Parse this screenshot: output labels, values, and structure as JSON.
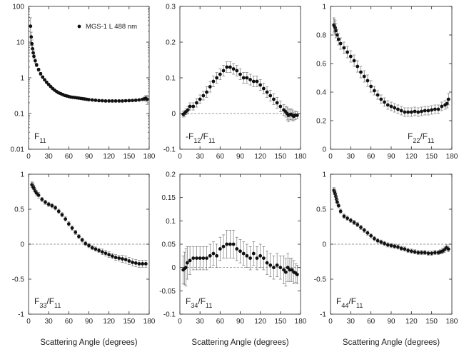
{
  "figure": {
    "shared_xlabel": "Scattering Angle (degrees)",
    "legend_label": "MGS-1 L 488 nm"
  },
  "chart_data": [
    {
      "type": "scatter",
      "panel_label": "F11",
      "panel_label_html": [
        "F",
        "11",
        ""
      ],
      "log_y": true,
      "xlim": [
        0,
        180
      ],
      "ylim": [
        0.01,
        100
      ],
      "xticks": [
        0,
        30,
        60,
        90,
        120,
        150,
        180
      ],
      "yticks": [
        0.01,
        0.1,
        1,
        10,
        100
      ],
      "ytick_labels": [
        "0.01",
        "0.1",
        "1",
        "10",
        "100"
      ],
      "zero_line": false,
      "series": [
        {
          "name": "MGS-1 L 488 nm",
          "x": [
            3,
            4,
            5,
            6,
            7,
            8,
            10,
            12,
            15,
            18,
            21,
            24,
            27,
            30,
            33,
            36,
            39,
            42,
            45,
            48,
            51,
            54,
            57,
            60,
            63,
            66,
            69,
            72,
            75,
            78,
            81,
            84,
            87,
            90,
            95,
            100,
            105,
            110,
            115,
            120,
            125,
            130,
            135,
            140,
            145,
            150,
            155,
            160,
            165,
            170,
            173,
            175,
            177
          ],
          "y": [
            28,
            14,
            9,
            6.5,
            5,
            4,
            3,
            2.3,
            1.7,
            1.3,
            1.05,
            0.88,
            0.75,
            0.65,
            0.57,
            0.5,
            0.45,
            0.41,
            0.38,
            0.36,
            0.34,
            0.32,
            0.31,
            0.3,
            0.29,
            0.285,
            0.28,
            0.275,
            0.27,
            0.265,
            0.26,
            0.255,
            0.25,
            0.245,
            0.24,
            0.235,
            0.23,
            0.228,
            0.225,
            0.225,
            0.225,
            0.225,
            0.225,
            0.225,
            0.228,
            0.23,
            0.232,
            0.235,
            0.24,
            0.25,
            0.26,
            0.27,
            0.25
          ],
          "err": [
            20,
            5,
            2.5,
            1.5,
            1,
            0.6,
            0.4,
            0.25,
            0.18,
            0.12,
            0.08,
            0.06,
            0.05,
            0.04,
            0.03,
            0.025,
            0.02,
            0.02,
            0.02,
            0.02,
            0.015,
            0.015,
            0.015,
            0.015,
            0.015,
            0.015,
            0.015,
            0.015,
            0.015,
            0.015,
            0.015,
            0.015,
            0.015,
            0.015,
            0.015,
            0.015,
            0.015,
            0.015,
            0.015,
            0.015,
            0.015,
            0.015,
            0.015,
            0.015,
            0.015,
            0.015,
            0.015,
            0.015,
            0.015,
            0.02,
            0.03,
            0.05,
            0.07
          ]
        }
      ]
    },
    {
      "type": "scatter",
      "panel_label": "-F12/F11",
      "panel_label_html": [
        "-F",
        "12",
        "/F",
        "11",
        ""
      ],
      "log_y": false,
      "xlim": [
        0,
        180
      ],
      "ylim": [
        -0.1,
        0.3
      ],
      "xticks": [
        0,
        30,
        60,
        90,
        120,
        150,
        180
      ],
      "yticks": [
        -0.1,
        0,
        0.1,
        0.2,
        0.3
      ],
      "ytick_labels": [
        "-0.1",
        "0",
        "0.1",
        "0.2",
        "0.3"
      ],
      "zero_line": true,
      "series": [
        {
          "name": "MGS-1 L 488 nm",
          "x": [
            5,
            7,
            9,
            12,
            15,
            20,
            25,
            30,
            35,
            40,
            45,
            50,
            55,
            60,
            65,
            70,
            75,
            80,
            85,
            90,
            95,
            100,
            105,
            110,
            115,
            120,
            125,
            130,
            135,
            140,
            145,
            150,
            155,
            158,
            160,
            162,
            164,
            166,
            168,
            170,
            172,
            175
          ],
          "y": [
            -0.002,
            0.0,
            0.005,
            0.01,
            0.02,
            0.02,
            0.03,
            0.04,
            0.05,
            0.06,
            0.075,
            0.09,
            0.1,
            0.11,
            0.12,
            0.13,
            0.13,
            0.125,
            0.12,
            0.11,
            0.1,
            0.1,
            0.095,
            0.09,
            0.09,
            0.08,
            0.07,
            0.06,
            0.05,
            0.04,
            0.03,
            0.02,
            0.01,
            0.005,
            0.0,
            -0.005,
            -0.003,
            -0.002,
            -0.005,
            -0.008,
            -0.005,
            -0.005
          ],
          "err": [
            0.008,
            0.008,
            0.008,
            0.01,
            0.01,
            0.01,
            0.012,
            0.012,
            0.012,
            0.015,
            0.015,
            0.015,
            0.015,
            0.015,
            0.015,
            0.015,
            0.015,
            0.015,
            0.015,
            0.015,
            0.015,
            0.015,
            0.015,
            0.015,
            0.015,
            0.015,
            0.015,
            0.015,
            0.015,
            0.015,
            0.015,
            0.015,
            0.015,
            0.015,
            0.018,
            0.018,
            0.015,
            0.015,
            0.015,
            0.012,
            0.012,
            0.01
          ]
        }
      ]
    },
    {
      "type": "scatter",
      "panel_label": "F22/F11",
      "panel_label_html": [
        "F",
        "22",
        "/F",
        "11",
        ""
      ],
      "log_y": false,
      "xlim": [
        0,
        180
      ],
      "ylim": [
        0,
        1
      ],
      "xticks": [
        0,
        30,
        60,
        90,
        120,
        150,
        180
      ],
      "yticks": [
        0,
        0.2,
        0.4,
        0.6,
        0.8,
        1
      ],
      "ytick_labels": [
        "0",
        "0.2",
        "0.4",
        "0.6",
        "0.8",
        "1"
      ],
      "zero_line": false,
      "series": [
        {
          "name": "MGS-1 L 488 nm",
          "x": [
            5,
            6,
            7,
            8,
            10,
            12,
            15,
            20,
            25,
            30,
            35,
            40,
            45,
            50,
            55,
            60,
            65,
            70,
            75,
            80,
            85,
            90,
            95,
            100,
            105,
            110,
            115,
            120,
            125,
            130,
            135,
            140,
            145,
            150,
            155,
            160,
            165,
            170,
            173,
            175
          ],
          "y": [
            0.87,
            0.86,
            0.85,
            0.83,
            0.8,
            0.77,
            0.74,
            0.71,
            0.68,
            0.65,
            0.62,
            0.58,
            0.54,
            0.51,
            0.48,
            0.44,
            0.41,
            0.38,
            0.35,
            0.33,
            0.31,
            0.3,
            0.29,
            0.28,
            0.27,
            0.26,
            0.26,
            0.26,
            0.265,
            0.26,
            0.265,
            0.27,
            0.27,
            0.275,
            0.28,
            0.28,
            0.3,
            0.31,
            0.32,
            0.35
          ],
          "err": [
            0.05,
            0.05,
            0.05,
            0.05,
            0.04,
            0.04,
            0.04,
            0.04,
            0.04,
            0.04,
            0.04,
            0.04,
            0.04,
            0.04,
            0.04,
            0.04,
            0.03,
            0.03,
            0.03,
            0.03,
            0.03,
            0.03,
            0.03,
            0.03,
            0.03,
            0.03,
            0.03,
            0.03,
            0.03,
            0.03,
            0.03,
            0.03,
            0.03,
            0.03,
            0.03,
            0.03,
            0.03,
            0.03,
            0.03,
            0.04
          ]
        }
      ]
    },
    {
      "type": "scatter",
      "panel_label": "F33/F11",
      "panel_label_html": [
        "F",
        "33",
        "/F",
        "11",
        ""
      ],
      "log_y": false,
      "xlim": [
        0,
        180
      ],
      "ylim": [
        -1,
        1
      ],
      "xticks": [
        0,
        30,
        60,
        90,
        120,
        150,
        180
      ],
      "yticks": [
        -1,
        -0.5,
        0,
        0.5,
        1
      ],
      "ytick_labels": [
        "-1",
        "-0.5",
        "0",
        "0.5",
        "1"
      ],
      "zero_line": true,
      "series": [
        {
          "name": "MGS-1 L 488 nm",
          "x": [
            5,
            6,
            7,
            8,
            10,
            12,
            15,
            20,
            25,
            30,
            35,
            40,
            45,
            50,
            55,
            60,
            65,
            70,
            75,
            80,
            85,
            90,
            95,
            100,
            105,
            110,
            115,
            120,
            125,
            130,
            135,
            140,
            145,
            150,
            155,
            160,
            165,
            170,
            175
          ],
          "y": [
            0.85,
            0.84,
            0.82,
            0.8,
            0.76,
            0.73,
            0.7,
            0.64,
            0.6,
            0.57,
            0.55,
            0.52,
            0.47,
            0.42,
            0.36,
            0.29,
            0.23,
            0.17,
            0.11,
            0.06,
            0.01,
            -0.02,
            -0.05,
            -0.07,
            -0.09,
            -0.11,
            -0.13,
            -0.15,
            -0.17,
            -0.19,
            -0.2,
            -0.21,
            -0.22,
            -0.24,
            -0.26,
            -0.27,
            -0.28,
            -0.28,
            -0.28
          ],
          "err": [
            0.04,
            0.04,
            0.04,
            0.04,
            0.04,
            0.04,
            0.04,
            0.03,
            0.03,
            0.03,
            0.03,
            0.03,
            0.03,
            0.03,
            0.03,
            0.03,
            0.03,
            0.03,
            0.03,
            0.03,
            0.03,
            0.03,
            0.03,
            0.03,
            0.03,
            0.04,
            0.04,
            0.04,
            0.04,
            0.04,
            0.04,
            0.05,
            0.05,
            0.05,
            0.05,
            0.05,
            0.05,
            0.05,
            0.05
          ]
        }
      ]
    },
    {
      "type": "scatter",
      "panel_label": "F34/F11",
      "panel_label_html": [
        "F",
        "34",
        "/F",
        "11",
        ""
      ],
      "log_y": false,
      "xlim": [
        0,
        180
      ],
      "ylim": [
        -0.1,
        0.2
      ],
      "xticks": [
        0,
        30,
        60,
        90,
        120,
        150,
        180
      ],
      "yticks": [
        -0.1,
        -0.05,
        0,
        0.05,
        0.1,
        0.15,
        0.2
      ],
      "ytick_labels": [
        "-0.1",
        "-0.05",
        "0",
        "0.05",
        "0.1",
        "0.15",
        "0.2"
      ],
      "zero_line": true,
      "series": [
        {
          "name": "MGS-1 L 488 nm",
          "x": [
            5,
            7,
            9,
            11,
            15,
            20,
            25,
            30,
            35,
            40,
            45,
            50,
            55,
            60,
            65,
            70,
            75,
            80,
            85,
            90,
            95,
            100,
            105,
            110,
            115,
            120,
            125,
            130,
            135,
            140,
            145,
            150,
            155,
            158,
            161,
            164,
            167,
            170,
            173,
            175
          ],
          "y": [
            -0.005,
            -0.002,
            0.0,
            0.01,
            0.015,
            0.02,
            0.02,
            0.02,
            0.02,
            0.02,
            0.025,
            0.03,
            0.025,
            0.04,
            0.045,
            0.05,
            0.05,
            0.05,
            0.04,
            0.035,
            0.03,
            0.025,
            0.02,
            0.03,
            0.02,
            0.025,
            0.02,
            0.01,
            0.005,
            0.0,
            0.005,
            0.0,
            -0.005,
            -0.01,
            0.0,
            -0.005,
            -0.005,
            -0.01,
            -0.012,
            -0.015
          ],
          "err": [
            0.03,
            0.035,
            0.04,
            0.035,
            0.03,
            0.025,
            0.025,
            0.025,
            0.025,
            0.025,
            0.025,
            0.025,
            0.025,
            0.025,
            0.025,
            0.03,
            0.03,
            0.03,
            0.025,
            0.025,
            0.025,
            0.025,
            0.025,
            0.025,
            0.025,
            0.025,
            0.025,
            0.025,
            0.025,
            0.025,
            0.025,
            0.025,
            0.03,
            0.03,
            0.03,
            0.025,
            0.025,
            0.025,
            0.02,
            0.02
          ]
        }
      ]
    },
    {
      "type": "scatter",
      "panel_label": "F44/F11",
      "panel_label_html": [
        "F",
        "44",
        "/F",
        "11",
        ""
      ],
      "log_y": false,
      "xlim": [
        0,
        180
      ],
      "ylim": [
        -1,
        1
      ],
      "xticks": [
        0,
        30,
        60,
        90,
        120,
        150,
        180
      ],
      "yticks": [
        -1,
        -0.5,
        0,
        0.5,
        1
      ],
      "ytick_labels": [
        "-1",
        "-0.5",
        "0",
        "0.5",
        "1"
      ],
      "zero_line": true,
      "series": [
        {
          "name": "MGS-1 L 488 nm",
          "x": [
            5,
            6,
            7,
            8,
            9,
            10,
            12,
            15,
            20,
            25,
            30,
            35,
            40,
            45,
            50,
            55,
            60,
            65,
            70,
            75,
            80,
            85,
            90,
            95,
            100,
            105,
            110,
            115,
            120,
            125,
            130,
            135,
            140,
            145,
            150,
            155,
            160,
            163,
            166,
            169,
            172,
            175
          ],
          "y": [
            0.77,
            0.75,
            0.72,
            0.68,
            0.64,
            0.6,
            0.55,
            0.47,
            0.4,
            0.37,
            0.34,
            0.31,
            0.28,
            0.24,
            0.2,
            0.16,
            0.12,
            0.08,
            0.05,
            0.03,
            0.01,
            -0.01,
            -0.02,
            -0.03,
            -0.04,
            -0.06,
            -0.07,
            -0.09,
            -0.1,
            -0.11,
            -0.12,
            -0.12,
            -0.12,
            -0.13,
            -0.13,
            -0.12,
            -0.12,
            -0.11,
            -0.1,
            -0.08,
            -0.05,
            -0.07
          ],
          "err": [
            0.04,
            0.04,
            0.04,
            0.04,
            0.04,
            0.04,
            0.03,
            0.03,
            0.03,
            0.03,
            0.03,
            0.03,
            0.03,
            0.03,
            0.03,
            0.03,
            0.03,
            0.03,
            0.03,
            0.03,
            0.03,
            0.03,
            0.03,
            0.03,
            0.03,
            0.03,
            0.03,
            0.03,
            0.03,
            0.03,
            0.03,
            0.03,
            0.03,
            0.03,
            0.03,
            0.03,
            0.03,
            0.03,
            0.04,
            0.04,
            0.04,
            0.04
          ]
        }
      ]
    }
  ]
}
